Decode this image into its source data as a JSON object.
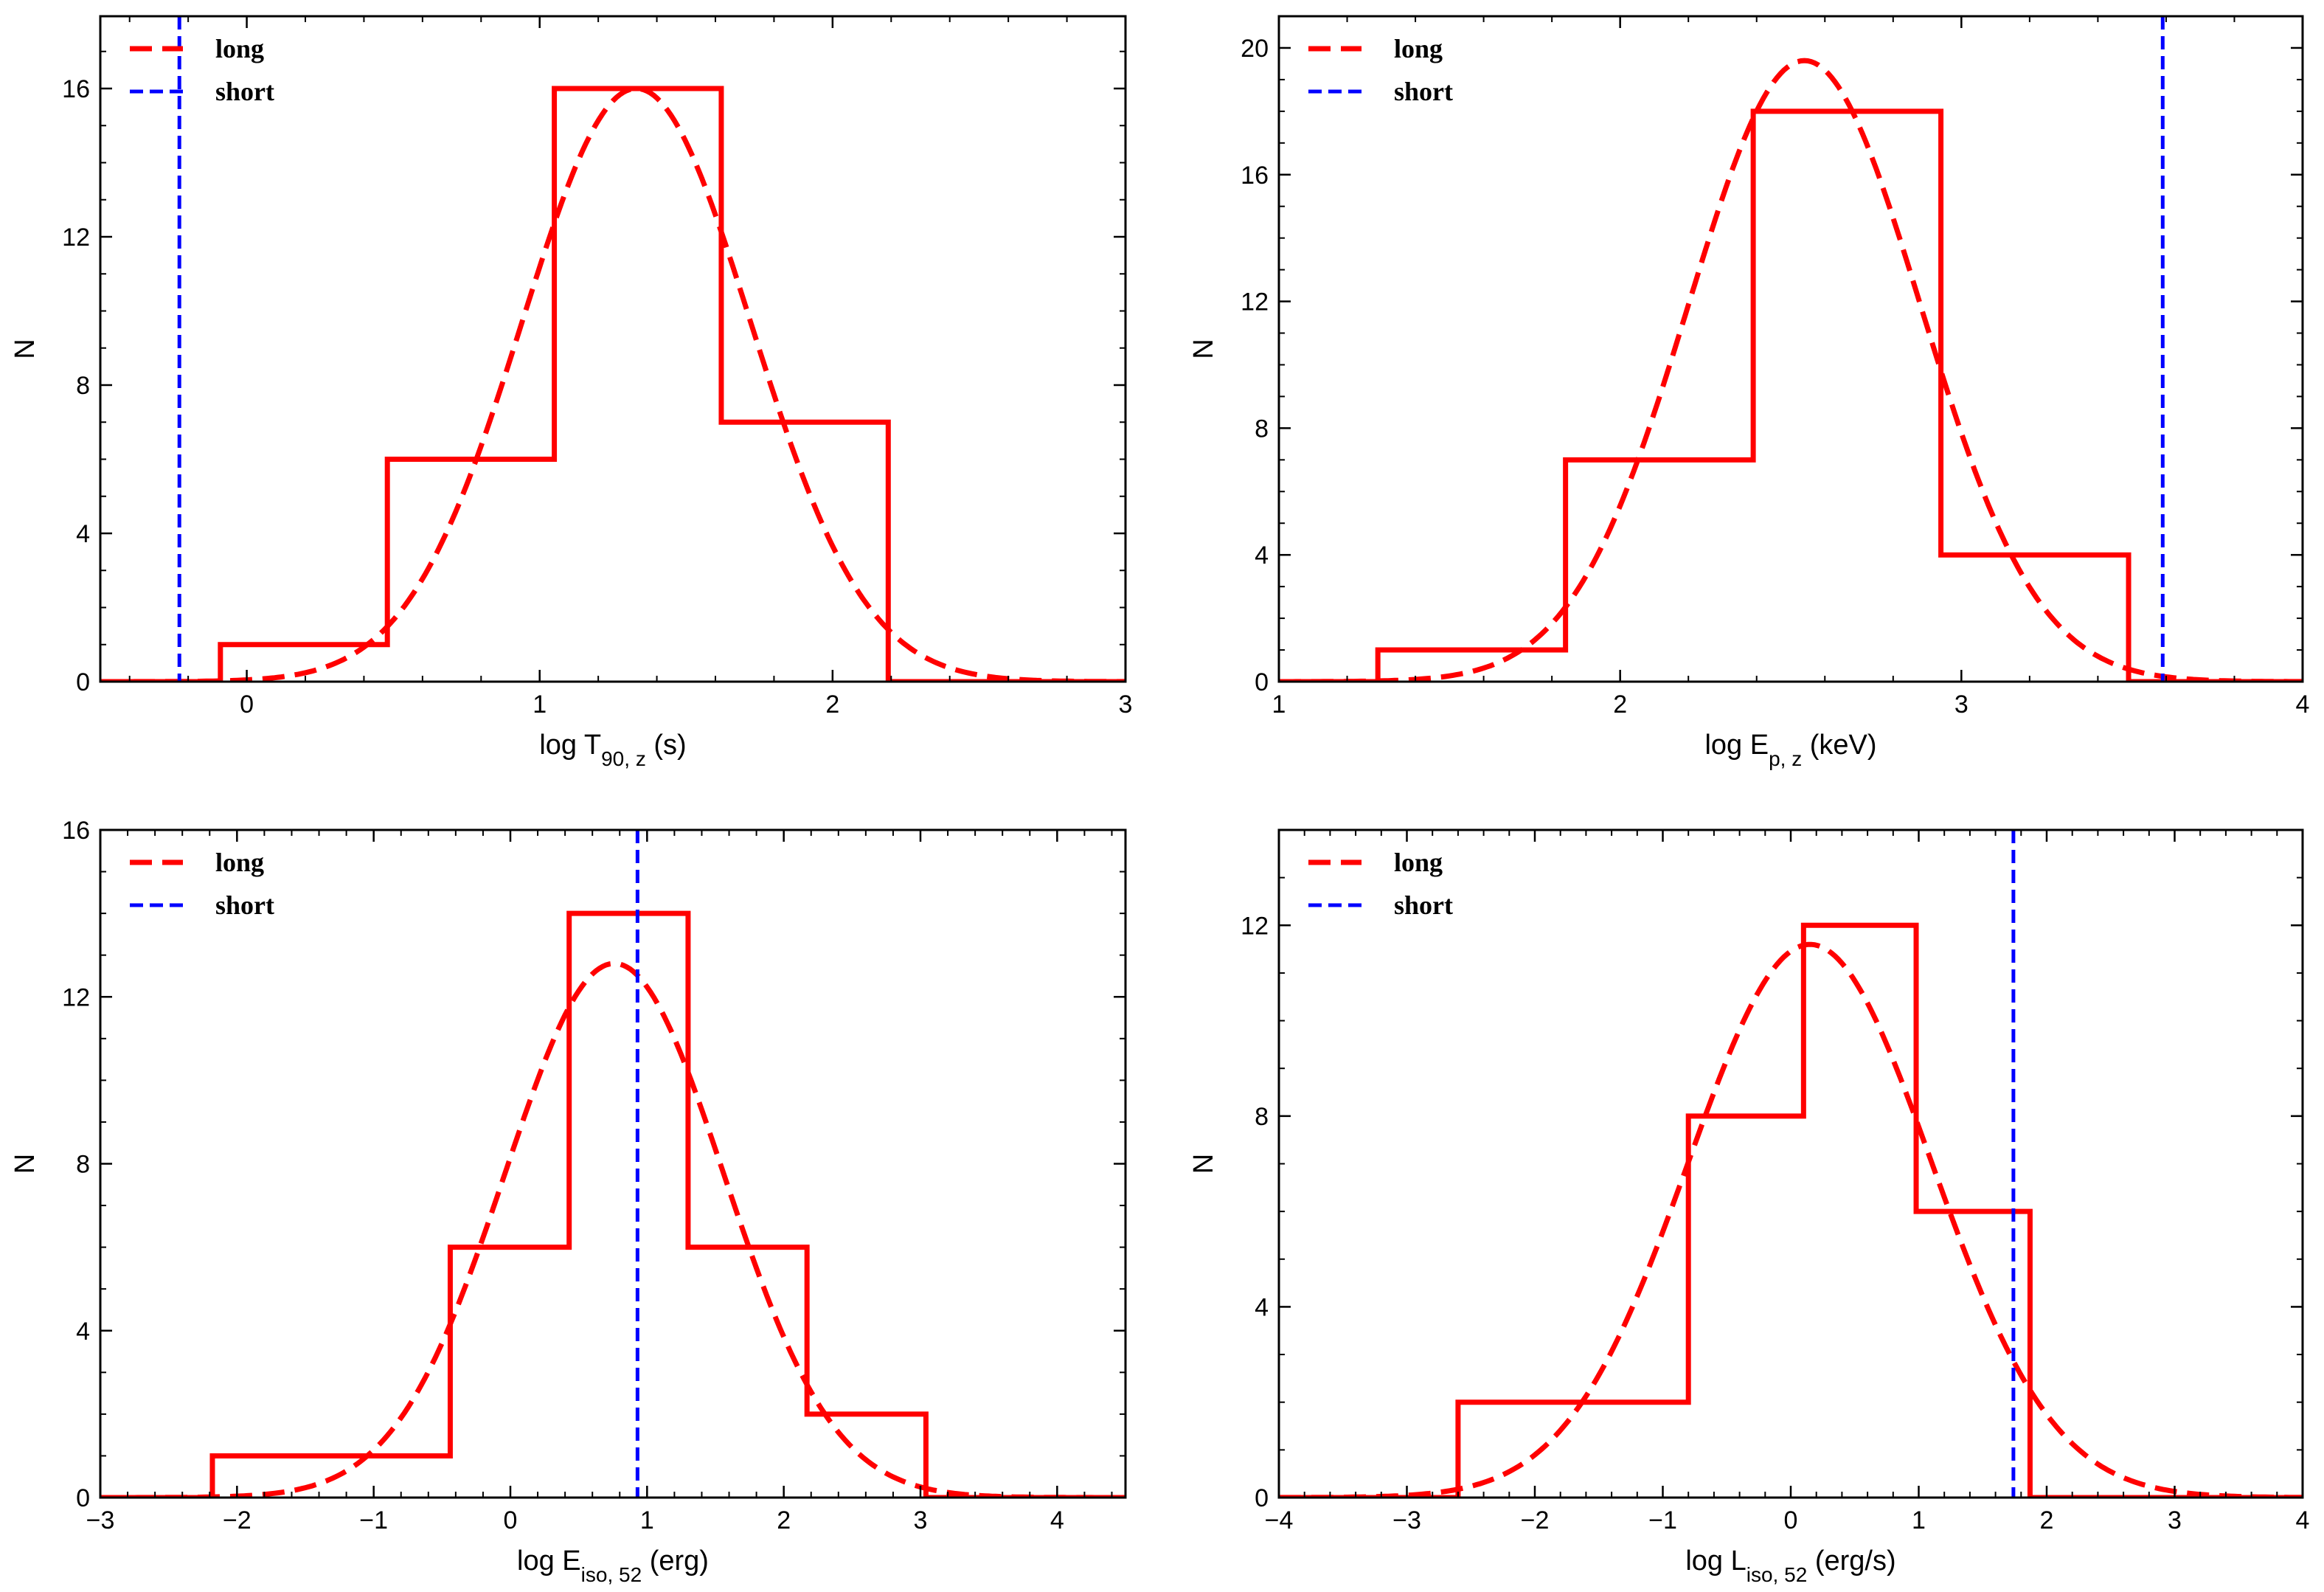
{
  "colors": {
    "long": "#ff0000",
    "short": "#0000ff",
    "axis": "#000000"
  },
  "chart_data": [
    {
      "type": "bar",
      "title": "",
      "xlabel": {
        "prefix": "log T",
        "sub": "90, z",
        "suffix": " (s)"
      },
      "ylabel": "N",
      "xlim": [
        -0.5,
        3
      ],
      "ylim": [
        0,
        17.95
      ],
      "xticks": [
        0,
        1,
        2,
        3
      ],
      "yticks": [
        0,
        4,
        8,
        12,
        16
      ],
      "hist_edges": [
        -0.09,
        0.48,
        1.05,
        1.62,
        2.19
      ],
      "hist_counts": [
        1,
        6,
        16,
        7
      ],
      "gaussian_fit": {
        "mu": 1.33,
        "sigma": 0.39,
        "amplitude": 16.0
      },
      "short_value": -0.23,
      "legend": [
        "long",
        "short"
      ],
      "legend_position": "top-left"
    },
    {
      "type": "bar",
      "title": "",
      "xlabel": {
        "prefix": "log E",
        "sub": "p, z",
        "suffix": " (keV)"
      },
      "ylabel": "N",
      "xlim": [
        1,
        4
      ],
      "ylim": [
        0,
        21
      ],
      "xticks": [
        1,
        2,
        3,
        4
      ],
      "yticks": [
        0,
        4,
        8,
        12,
        16,
        20
      ],
      "hist_edges": [
        1.29,
        1.84,
        2.39,
        2.94,
        3.49
      ],
      "hist_counts": [
        1,
        7,
        18,
        4
      ],
      "gaussian_fit": {
        "mu": 2.54,
        "sigma": 0.34,
        "amplitude": 19.6
      },
      "short_value": 3.59,
      "legend": [
        "long",
        "short"
      ],
      "legend_position": "top-left"
    },
    {
      "type": "bar",
      "title": "",
      "xlabel": {
        "prefix": "log E",
        "sub": "iso, 52",
        "suffix": " (erg)"
      },
      "ylabel": "N",
      "xlim": [
        -3,
        4.5
      ],
      "ylim": [
        0,
        16
      ],
      "xticks": [
        -3,
        -2,
        -1,
        0,
        1,
        2,
        3,
        4
      ],
      "yticks": [
        0,
        4,
        8,
        12,
        16
      ],
      "hist_edges": [
        -2.18,
        -1.31,
        -0.44,
        0.43,
        1.3,
        2.17,
        3.04
      ],
      "hist_counts": [
        1,
        1,
        6,
        14,
        6,
        2
      ],
      "gaussian_fit": {
        "mu": 0.76,
        "sigma": 0.8,
        "amplitude": 12.8
      },
      "short_value": 0.93,
      "legend": [
        "long",
        "short"
      ],
      "legend_position": "top-left"
    },
    {
      "type": "bar",
      "title": "",
      "xlabel": {
        "prefix": "log L",
        "sub": "iso, 52",
        "suffix": " (erg/s)"
      },
      "ylabel": "N",
      "xlim": [
        -4,
        4
      ],
      "ylim": [
        0,
        14
      ],
      "xticks": [
        -4,
        -3,
        -2,
        -1,
        0,
        1,
        2,
        3,
        4
      ],
      "yticks": [
        0,
        4,
        8,
        12
      ],
      "hist_edges": [
        -2.6,
        -1.7,
        -0.8,
        0.1,
        0.98,
        1.87
      ],
      "hist_counts": [
        2,
        2,
        8,
        12,
        6
      ],
      "gaussian_fit": {
        "mu": 0.15,
        "sigma": 0.95,
        "amplitude": 11.6
      },
      "short_value": 1.74,
      "legend": [
        "long",
        "short"
      ],
      "legend_position": "top-left"
    }
  ]
}
